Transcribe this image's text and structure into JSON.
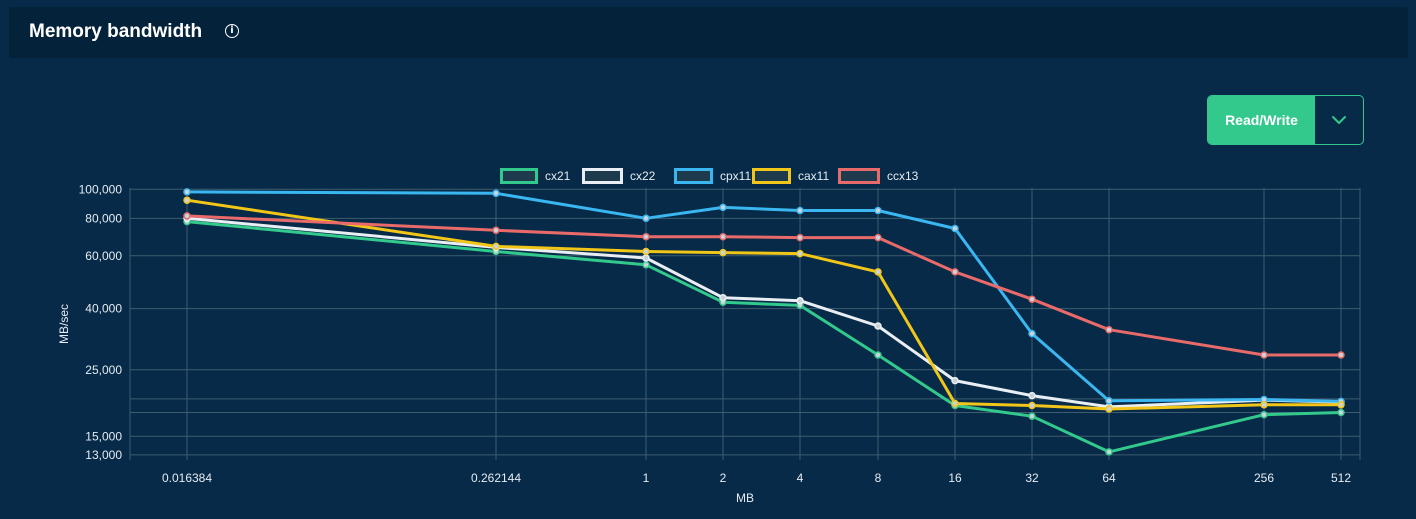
{
  "header": {
    "title": "Memory bandwidth",
    "info_icon": "info-icon"
  },
  "mode_select": {
    "label": "Read/Write",
    "icon": "chevron-down-icon"
  },
  "chart_data": {
    "type": "line",
    "xlabel": "MB",
    "ylabel": "MB/sec",
    "x": [
      "0.016384",
      "0.262144",
      "1",
      "2",
      "4",
      "8",
      "16",
      "32",
      "64",
      "256",
      "512"
    ],
    "y_ticks": [
      "100,000",
      "80,000",
      "60,000",
      "40,000",
      "25,000",
      "15,000",
      "13,000"
    ],
    "y_scale": "log",
    "ylim": [
      12500,
      101000
    ],
    "grid": true,
    "legend_position": "top",
    "series": [
      {
        "name": "cx21",
        "color": "#33c98c",
        "values": [
          78000,
          62000,
          56000,
          42000,
          41000,
          28000,
          19000,
          17500,
          13300,
          17700,
          18000
        ]
      },
      {
        "name": "cx22",
        "color": "#e8eef3",
        "values": [
          80000,
          64000,
          59000,
          43500,
          42500,
          35000,
          23000,
          20500,
          18800,
          19800,
          19500
        ]
      },
      {
        "name": "cpx11",
        "color": "#3ab7f0",
        "values": [
          98000,
          97000,
          80000,
          87000,
          85000,
          85000,
          74000,
          33000,
          19700,
          19900,
          19600
        ]
      },
      {
        "name": "cax11",
        "color": "#f2c618",
        "values": [
          92000,
          64500,
          62000,
          61500,
          61000,
          53000,
          19300,
          19000,
          18500,
          19100,
          19100
        ]
      },
      {
        "name": "ccx13",
        "color": "#e86a6a",
        "values": [
          81500,
          73000,
          69500,
          69500,
          69000,
          69000,
          53000,
          43000,
          34000,
          28000,
          28000
        ]
      }
    ]
  }
}
